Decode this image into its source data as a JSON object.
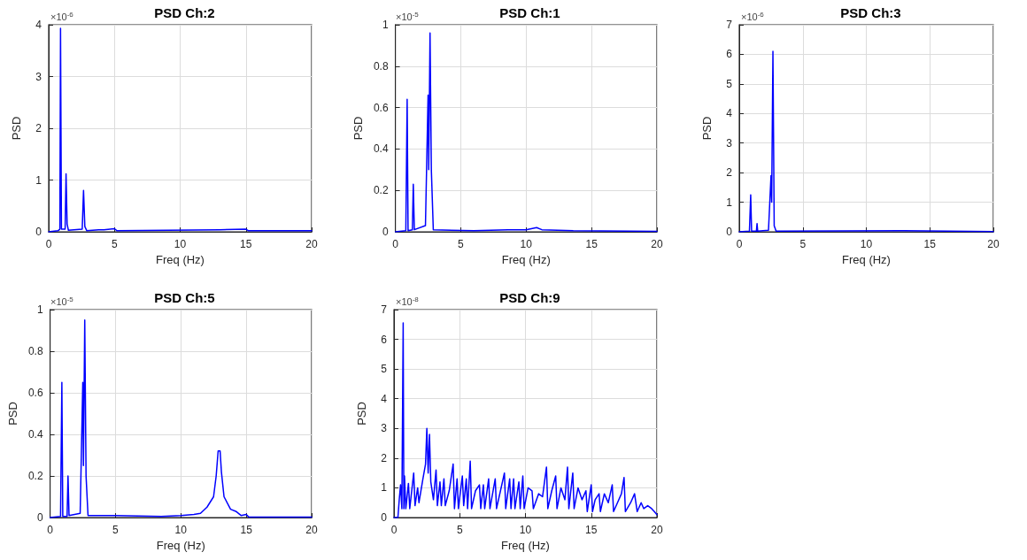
{
  "chart_data": [
    {
      "type": "line",
      "title": "PSD Ch:2",
      "xlabel": "Freq (Hz)",
      "ylabel": "PSD",
      "annotations": [
        "×10$^{-6}$"
      ],
      "grid": true,
      "xlim": [
        0,
        20
      ],
      "xticks": [
        0,
        5,
        10,
        15,
        20
      ],
      "ylim": [
        0,
        4
      ],
      "yticks": [
        0,
        1,
        2,
        3,
        4
      ],
      "series": [
        {
          "color": "#0000ff",
          "x": [
            0,
            0.7,
            0.85,
            0.9,
            0.97,
            1.25,
            1.32,
            1.4,
            1.5,
            2.55,
            2.65,
            2.75,
            2.9,
            3.8,
            4.2,
            5,
            5.2,
            13,
            15,
            15.2,
            20
          ],
          "values": [
            0,
            0.02,
            0.05,
            3.93,
            0.05,
            0.05,
            1.12,
            0.15,
            0.03,
            0.05,
            0.8,
            0.1,
            0.02,
            0.04,
            0.04,
            0.06,
            0.02,
            0.04,
            0.05,
            0.02,
            0.02
          ]
        }
      ]
    },
    {
      "type": "line",
      "title": "PSD Ch:1",
      "xlabel": "Freq (Hz)",
      "ylabel": "PSD",
      "annotations": [
        "×10$^{-5}$"
      ],
      "grid": true,
      "xlim": [
        0,
        20
      ],
      "xticks": [
        0,
        5,
        10,
        15,
        20
      ],
      "ylim": [
        0,
        1
      ],
      "yticks": [
        0,
        0.2,
        0.4,
        0.6,
        0.8,
        1
      ],
      "series": [
        {
          "color": "#0000ff",
          "x": [
            0,
            0.8,
            0.9,
            0.97,
            1.3,
            1.37,
            1.45,
            2.3,
            2.5,
            2.55,
            2.65,
            2.75,
            2.9,
            6,
            8.6,
            10,
            10.8,
            11.2,
            13.6,
            20
          ],
          "values": [
            0,
            0.005,
            0.64,
            0.005,
            0.01,
            0.23,
            0.01,
            0.03,
            0.66,
            0.3,
            0.96,
            0.3,
            0.01,
            0.005,
            0.01,
            0.01,
            0.02,
            0.01,
            0.005,
            0.002
          ]
        }
      ]
    },
    {
      "type": "line",
      "title": "PSD Ch:3",
      "xlabel": "Freq (Hz)",
      "ylabel": "PSD",
      "annotations": [
        "×10$^{-6}$"
      ],
      "grid": true,
      "xlim": [
        0,
        20
      ],
      "xticks": [
        0,
        5,
        10,
        15,
        20
      ],
      "ylim": [
        0,
        7
      ],
      "yticks": [
        0,
        1,
        2,
        3,
        4,
        5,
        6,
        7
      ],
      "series": [
        {
          "color": "#0000ff",
          "x": [
            0,
            0.8,
            0.9,
            0.97,
            1.35,
            1.4,
            1.45,
            2.3,
            2.5,
            2.55,
            2.65,
            2.75,
            2.9,
            13,
            20
          ],
          "values": [
            0,
            0.02,
            1.25,
            0.02,
            0.02,
            0.28,
            0.02,
            0.05,
            1.9,
            1,
            6.1,
            0.2,
            0.02,
            0.04,
            0.01
          ]
        }
      ]
    },
    {
      "type": "line",
      "title": "PSD Ch:5",
      "xlabel": "Freq (Hz)",
      "ylabel": "PSD",
      "annotations": [
        "×10$^{-5}$"
      ],
      "grid": true,
      "xlim": [
        0,
        20
      ],
      "xticks": [
        0,
        5,
        10,
        15,
        20
      ],
      "ylim": [
        0,
        1
      ],
      "yticks": [
        0,
        0.2,
        0.4,
        0.6,
        0.8,
        1
      ],
      "series": [
        {
          "color": "#0000ff",
          "x": [
            0,
            0.8,
            0.9,
            0.97,
            1.3,
            1.37,
            1.45,
            2.3,
            2.5,
            2.55,
            2.65,
            2.75,
            2.9,
            5,
            8.5,
            10,
            11,
            11.5,
            12,
            12.5,
            12.7,
            12.85,
            13,
            13.1,
            13.3,
            13.8,
            14.2,
            14.6,
            15,
            15.2,
            20
          ],
          "values": [
            0,
            0.005,
            0.65,
            0.005,
            0.005,
            0.2,
            0.01,
            0.02,
            0.65,
            0.25,
            0.95,
            0.2,
            0.01,
            0.01,
            0.005,
            0.01,
            0.015,
            0.02,
            0.05,
            0.1,
            0.2,
            0.32,
            0.32,
            0.22,
            0.1,
            0.04,
            0.03,
            0.01,
            0.015,
            0.002,
            0.002
          ]
        }
      ]
    },
    {
      "type": "line",
      "title": "PSD Ch:9",
      "xlabel": "Freq (Hz)",
      "ylabel": "PSD",
      "annotations": [
        "×10$^{-8}$"
      ],
      "grid": true,
      "xlim": [
        0,
        20
      ],
      "xticks": [
        0,
        5,
        10,
        15,
        20
      ],
      "ylim": [
        0,
        7
      ],
      "yticks": [
        0,
        1,
        2,
        3,
        4,
        5,
        6,
        7
      ],
      "series": [
        {
          "color": "#0000ff",
          "x": [
            0,
            0.3,
            0.4,
            0.5,
            0.6,
            0.7,
            0.75,
            0.8,
            0.9,
            1.1,
            1.2,
            1.5,
            1.6,
            1.8,
            1.9,
            2.2,
            2.4,
            2.5,
            2.6,
            2.7,
            2.8,
            3.0,
            3.2,
            3.3,
            3.5,
            3.6,
            3.8,
            3.9,
            4.2,
            4.5,
            4.6,
            4.8,
            4.9,
            5.2,
            5.3,
            5.5,
            5.6,
            5.8,
            5.9,
            6.2,
            6.5,
            6.6,
            6.8,
            6.9,
            7.2,
            7.3,
            7.7,
            7.8,
            8.1,
            8.4,
            8.5,
            8.8,
            8.9,
            9.1,
            9.2,
            9.5,
            9.6,
            9.8,
            9.9,
            10.2,
            10.5,
            10.6,
            11.0,
            11.3,
            11.6,
            11.7,
            12.0,
            12.3,
            12.4,
            12.7,
            13.0,
            13.2,
            13.3,
            13.6,
            13.7,
            14.0,
            14.3,
            14.6,
            14.7,
            15.0,
            15.1,
            15.3,
            15.6,
            15.7,
            16.0,
            16.3,
            16.6,
            16.7,
            17.0,
            17.3,
            17.5,
            17.6,
            18.0,
            18.3,
            18.5,
            18.8,
            19.0,
            19.3,
            19.6,
            19.8,
            20
          ],
          "values": [
            0,
            0,
            0.6,
            1.1,
            0.3,
            6.55,
            0.3,
            1.4,
            0.3,
            1.15,
            0.3,
            1.5,
            0.4,
            1,
            0.5,
            1.3,
            1.8,
            3,
            1.5,
            2.8,
            1.2,
            0.6,
            1.6,
            0.4,
            1.2,
            0.4,
            1.3,
            0.4,
            0.9,
            1.8,
            0.3,
            1.3,
            0.3,
            1.4,
            0.4,
            1.3,
            0.3,
            1.9,
            0.3,
            0.9,
            1.1,
            0.3,
            1.1,
            0.3,
            1.3,
            0.3,
            1.3,
            0.3,
            0.9,
            1.5,
            0.3,
            1.3,
            0.3,
            1.3,
            0.3,
            1.2,
            0.3,
            1.4,
            0.3,
            1,
            0.9,
            0.3,
            0.8,
            0.7,
            1.7,
            0.3,
            0.9,
            1.4,
            0.3,
            1,
            0.6,
            1.7,
            0.3,
            1.5,
            0.3,
            1,
            0.6,
            0.9,
            0.2,
            1.1,
            0.2,
            0.6,
            0.8,
            0.2,
            0.8,
            0.5,
            1.1,
            0.2,
            0.5,
            0.8,
            1.35,
            0.2,
            0.5,
            0.8,
            0.2,
            0.5,
            0.3,
            0.4,
            0.3,
            0.2,
            0.1
          ]
        }
      ]
    }
  ]
}
